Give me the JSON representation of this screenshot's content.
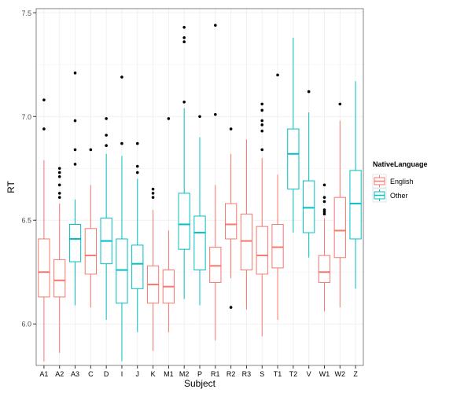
{
  "chart_data": {
    "type": "boxplot",
    "xlabel": "Subject",
    "ylabel": "RT",
    "ylim": [
      5.8,
      7.52
    ],
    "yticks": [
      6.0,
      6.5,
      7.0,
      7.5
    ],
    "ytick_labels": [
      "6.0",
      "6.5",
      "7.0",
      "7.5"
    ],
    "grid": true,
    "legend": {
      "title": "NativeLanguage",
      "position": "right",
      "entries": [
        {
          "name": "English",
          "color": "#F8766D"
        },
        {
          "name": "Other",
          "color": "#00BFC4"
        }
      ]
    },
    "colors": {
      "English": "#F8766D",
      "Other": "#00BFC4",
      "outlier": "#000000",
      "panel": "#FFFFFF",
      "panel_border": "#333333",
      "grid": "#F0F0F0"
    },
    "categories": [
      "A1",
      "A2",
      "A3",
      "C",
      "D",
      "I",
      "J",
      "K",
      "M1",
      "M2",
      "P",
      "R1",
      "R2",
      "R3",
      "S",
      "T1",
      "T2",
      "V",
      "W1",
      "W2",
      "Z"
    ],
    "boxes": [
      {
        "subject": "A1",
        "group": "English",
        "whisker_low": 5.82,
        "q1": 6.13,
        "median": 6.25,
        "q3": 6.41,
        "whisker_high": 6.79,
        "outliers": [
          6.94,
          7.08
        ]
      },
      {
        "subject": "A2",
        "group": "English",
        "whisker_low": 5.86,
        "q1": 6.13,
        "median": 6.21,
        "q3": 6.31,
        "whisker_high": 6.58,
        "outliers": [
          6.61,
          6.63,
          6.67,
          6.71,
          6.73,
          6.75
        ]
      },
      {
        "subject": "A3",
        "group": "Other",
        "whisker_low": 6.09,
        "q1": 6.3,
        "median": 6.41,
        "q3": 6.48,
        "whisker_high": 6.6,
        "outliers": [
          6.77,
          6.84,
          6.98,
          7.21
        ]
      },
      {
        "subject": "C",
        "group": "English",
        "whisker_low": 6.08,
        "q1": 6.24,
        "median": 6.33,
        "q3": 6.46,
        "whisker_high": 6.67,
        "outliers": [
          6.84
        ]
      },
      {
        "subject": "D",
        "group": "Other",
        "whisker_low": 6.02,
        "q1": 6.29,
        "median": 6.4,
        "q3": 6.51,
        "whisker_high": 6.82,
        "outliers": [
          6.86,
          6.91,
          6.99
        ]
      },
      {
        "subject": "I",
        "group": "Other",
        "whisker_low": 5.82,
        "q1": 6.1,
        "median": 6.26,
        "q3": 6.41,
        "whisker_high": 6.81,
        "outliers": [
          6.87,
          7.19
        ]
      },
      {
        "subject": "J",
        "group": "Other",
        "whisker_low": 5.96,
        "q1": 6.17,
        "median": 6.29,
        "q3": 6.38,
        "whisker_high": 6.7,
        "outliers": [
          6.73,
          6.76,
          6.87
        ]
      },
      {
        "subject": "K",
        "group": "English",
        "whisker_low": 5.87,
        "q1": 6.1,
        "median": 6.19,
        "q3": 6.28,
        "whisker_high": 6.55,
        "outliers": [
          6.61,
          6.63,
          6.65
        ]
      },
      {
        "subject": "M1",
        "group": "English",
        "whisker_low": 5.96,
        "q1": 6.1,
        "median": 6.18,
        "q3": 6.26,
        "whisker_high": 6.45,
        "outliers": [
          6.99
        ]
      },
      {
        "subject": "M2",
        "group": "Other",
        "whisker_low": 6.12,
        "q1": 6.36,
        "median": 6.48,
        "q3": 6.63,
        "whisker_high": 7.04,
        "outliers": [
          7.07,
          7.36,
          7.38,
          7.43
        ]
      },
      {
        "subject": "P",
        "group": "Other",
        "whisker_low": 6.09,
        "q1": 6.26,
        "median": 6.44,
        "q3": 6.52,
        "whisker_high": 6.9,
        "outliers": [
          7.0
        ]
      },
      {
        "subject": "R1",
        "group": "English",
        "whisker_low": 5.92,
        "q1": 6.2,
        "median": 6.28,
        "q3": 6.37,
        "whisker_high": 6.67,
        "outliers": [
          7.01,
          7.44
        ]
      },
      {
        "subject": "R2",
        "group": "English",
        "whisker_low": 6.22,
        "q1": 6.41,
        "median": 6.48,
        "q3": 6.58,
        "whisker_high": 6.82,
        "outliers": [
          6.08,
          6.94
        ]
      },
      {
        "subject": "R3",
        "group": "English",
        "whisker_low": 6.07,
        "q1": 6.26,
        "median": 6.4,
        "q3": 6.53,
        "whisker_high": 6.89,
        "outliers": []
      },
      {
        "subject": "S",
        "group": "English",
        "whisker_low": 5.94,
        "q1": 6.24,
        "median": 6.33,
        "q3": 6.47,
        "whisker_high": 6.8,
        "outliers": [
          6.84,
          6.93,
          6.96,
          6.98,
          7.03,
          7.06
        ]
      },
      {
        "subject": "T1",
        "group": "English",
        "whisker_low": 6.02,
        "q1": 6.27,
        "median": 6.37,
        "q3": 6.48,
        "whisker_high": 6.72,
        "outliers": [
          7.2
        ]
      },
      {
        "subject": "T2",
        "group": "Other",
        "whisker_low": 6.44,
        "q1": 6.65,
        "median": 6.82,
        "q3": 6.94,
        "whisker_high": 7.38,
        "outliers": []
      },
      {
        "subject": "V",
        "group": "Other",
        "whisker_low": 6.32,
        "q1": 6.44,
        "median": 6.56,
        "q3": 6.69,
        "whisker_high": 7.02,
        "outliers": [
          7.12
        ]
      },
      {
        "subject": "W1",
        "group": "English",
        "whisker_low": 6.06,
        "q1": 6.2,
        "median": 6.25,
        "q3": 6.33,
        "whisker_high": 6.51,
        "outliers": [
          6.53,
          6.54,
          6.55,
          6.59,
          6.61,
          6.67
        ]
      },
      {
        "subject": "W2",
        "group": "English",
        "whisker_low": 6.08,
        "q1": 6.32,
        "median": 6.45,
        "q3": 6.61,
        "whisker_high": 6.98,
        "outliers": [
          7.06
        ]
      },
      {
        "subject": "Z",
        "group": "Other",
        "whisker_low": 6.17,
        "q1": 6.41,
        "median": 6.58,
        "q3": 6.74,
        "whisker_high": 7.17,
        "outliers": []
      }
    ]
  }
}
